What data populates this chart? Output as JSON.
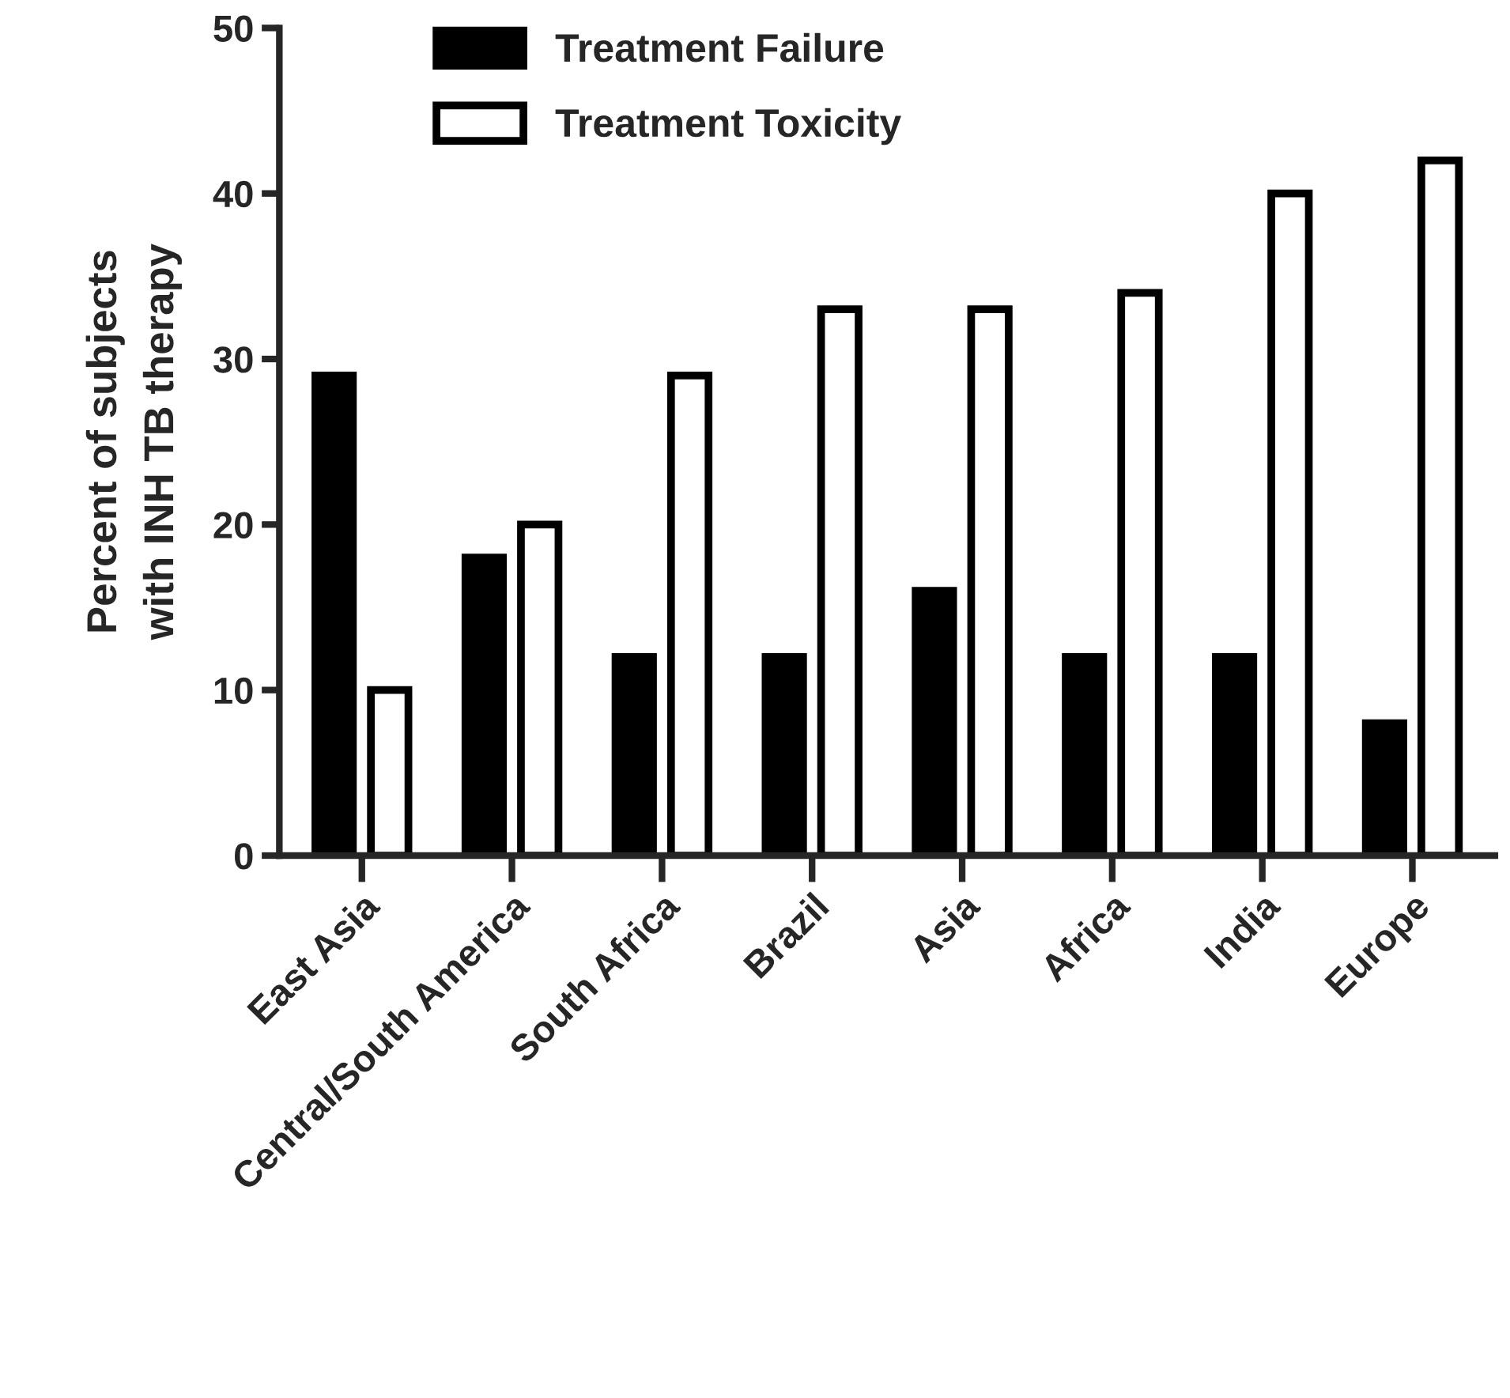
{
  "chart_data": {
    "type": "bar",
    "ylabel": "Percent of subjects\nwith INH TB therapy",
    "categories": [
      "East Asia",
      "Central/South America",
      "South Africa",
      "Brazil",
      "Asia",
      "Africa",
      "India",
      "Europe"
    ],
    "series": [
      {
        "name": "Treatment Failure",
        "color": "#000000",
        "values": [
          29,
          18,
          12,
          12,
          16,
          12,
          12,
          8
        ]
      },
      {
        "name": "Treatment Toxicity",
        "color": "#ffffff",
        "values": [
          10,
          20,
          29,
          33,
          33,
          34,
          40,
          42
        ]
      }
    ],
    "ylim": [
      0,
      50
    ],
    "yticks": [
      0,
      10,
      20,
      30,
      40,
      50
    ],
    "grid": false,
    "legend": "top left"
  }
}
